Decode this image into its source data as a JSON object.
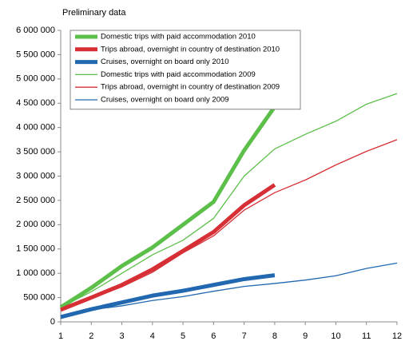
{
  "chart_data": {
    "type": "line",
    "annotation": "Preliminary data",
    "x": [
      1,
      2,
      3,
      4,
      5,
      6,
      7,
      8,
      9,
      10,
      11,
      12
    ],
    "xlim": [
      1,
      12
    ],
    "xticks": [
      1,
      2,
      3,
      4,
      5,
      6,
      7,
      8,
      9,
      10,
      11,
      12
    ],
    "ylim": [
      0,
      6000000
    ],
    "yticks": [
      0,
      {
        "value": 500000,
        "label": "500 000"
      },
      {
        "value": 1000000,
        "label": "1 000 000"
      },
      {
        "value": 1500000,
        "label": "1 500 000"
      },
      {
        "value": 2000000,
        "label": "2 000 000"
      },
      {
        "value": 2500000,
        "label": "2 500 000"
      },
      {
        "value": 3000000,
        "label": "3 000 000"
      },
      {
        "value": 3500000,
        "label": "3 500 000"
      },
      {
        "value": 4000000,
        "label": "4 000 000"
      },
      {
        "value": 4500000,
        "label": "4 500 000"
      },
      {
        "value": 5000000,
        "label": "5 000 000"
      },
      {
        "value": 5500000,
        "label": "5 500 000"
      },
      {
        "value": 6000000,
        "label": "6 000 000"
      }
    ],
    "grid": false,
    "legend": "top-left",
    "series": [
      {
        "name": "Domestic trips with paid accommodation 2010",
        "color": "#5cbf4a",
        "linewidth": 5,
        "values": [
          300000,
          700000,
          1150000,
          1530000,
          2000000,
          2470000,
          3530000,
          4430000,
          null,
          null,
          null,
          null
        ]
      },
      {
        "name": "Trips abroad, overnight in country of destination 2010",
        "color": "#d62f35",
        "linewidth": 5,
        "values": [
          250000,
          500000,
          760000,
          1080000,
          1460000,
          1850000,
          2400000,
          2820000,
          null,
          null,
          null,
          null
        ]
      },
      {
        "name": "Cruises, overnight on board only 2010",
        "color": "#2168b0",
        "linewidth": 5,
        "values": [
          100000,
          260000,
          400000,
          540000,
          640000,
          760000,
          880000,
          960000,
          null,
          null,
          null,
          null
        ]
      },
      {
        "name": "Domestic trips with paid accommodation 2009",
        "color": "#5cbf4a",
        "linewidth": 1.3,
        "values": [
          300000,
          620000,
          1000000,
          1380000,
          1680000,
          2130000,
          3000000,
          3560000,
          3860000,
          4130000,
          4480000,
          4700000
        ]
      },
      {
        "name": "Trips abroad, overnight in country of destination 2009",
        "color": "#d62f35",
        "linewidth": 1.3,
        "values": [
          250000,
          480000,
          720000,
          1020000,
          1420000,
          1770000,
          2300000,
          2660000,
          2920000,
          3230000,
          3510000,
          3750000
        ]
      },
      {
        "name": "Cruises, overnight on board only 2009",
        "color": "#2168b0",
        "linewidth": 1.3,
        "values": [
          100000,
          250000,
          330000,
          440000,
          520000,
          630000,
          730000,
          790000,
          860000,
          950000,
          1100000,
          1210000
        ]
      }
    ]
  }
}
